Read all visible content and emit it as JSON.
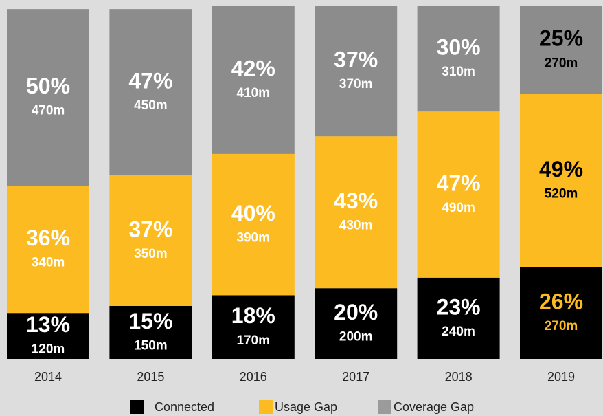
{
  "chart_data": {
    "type": "stacked_bar",
    "categories": [
      "2014",
      "2015",
      "2016",
      "2017",
      "2018",
      "2019"
    ],
    "ylim": [
      0,
      100
    ],
    "series": [
      {
        "name": "Connected",
        "color": "#000000",
        "values": [
          13,
          15,
          18,
          20,
          23,
          26
        ],
        "value_labels": [
          "13%",
          "15%",
          "18%",
          "20%",
          "23%",
          "26%"
        ],
        "count_labels": [
          "120m",
          "150m",
          "170m",
          "200m",
          "240m",
          "270m"
        ],
        "label_colors": [
          "#ffffff",
          "#ffffff",
          "#ffffff",
          "#ffffff",
          "#ffffff",
          "#fbbb21"
        ]
      },
      {
        "name": "Usage Gap",
        "color": "#fbbb21",
        "values": [
          36,
          37,
          40,
          43,
          47,
          49
        ],
        "value_labels": [
          "36%",
          "37%",
          "40%",
          "43%",
          "47%",
          "49%"
        ],
        "count_labels": [
          "340m",
          "350m",
          "390m",
          "430m",
          "490m",
          "520m"
        ],
        "label_colors": [
          "#ffffff",
          "#ffffff",
          "#ffffff",
          "#ffffff",
          "#ffffff",
          "#000000"
        ]
      },
      {
        "name": "Coverage Gap",
        "color": "#8c8c8c",
        "values": [
          50,
          47,
          42,
          37,
          30,
          25
        ],
        "value_labels": [
          "50%",
          "47%",
          "42%",
          "37%",
          "30%",
          "25%"
        ],
        "count_labels": [
          "470m",
          "450m",
          "410m",
          "370m",
          "310m",
          "270m"
        ],
        "label_colors": [
          "#ffffff",
          "#ffffff",
          "#ffffff",
          "#ffffff",
          "#ffffff",
          "#000000"
        ]
      }
    ]
  }
}
